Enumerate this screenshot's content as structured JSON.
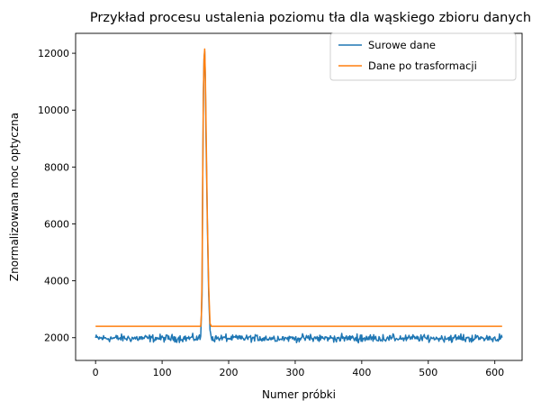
{
  "chart_data": {
    "type": "line",
    "title": "Przykład procesu ustalenia poziomu tła dla wąskiego zbioru danych",
    "xlabel": "Numer próbki",
    "ylabel": "Znormalizowana moc optyczna",
    "xlim": [
      -30,
      641
    ],
    "ylim": [
      1200,
      12700
    ],
    "xticks": [
      0,
      100,
      200,
      300,
      400,
      500,
      600
    ],
    "yticks": [
      2000,
      4000,
      6000,
      8000,
      10000,
      12000
    ],
    "grid": false,
    "legend_position": "top-right",
    "series": [
      {
        "name": "Surowe dane",
        "color": "#1f77b4",
        "baseline": 1980,
        "noise_amplitude": 130,
        "n_points": 612,
        "peak": [
          [
            158,
            2050
          ],
          [
            160,
            3500
          ],
          [
            161,
            7500
          ],
          [
            162,
            10500
          ],
          [
            163,
            11800
          ],
          [
            164,
            12050
          ],
          [
            165,
            11000
          ],
          [
            166,
            9000
          ],
          [
            168,
            6000
          ],
          [
            170,
            3500
          ],
          [
            172,
            2300
          ],
          [
            174,
            2000
          ]
        ]
      },
      {
        "name": "Dane po trasformacji",
        "color": "#ff7f0e",
        "x": [
          0,
          158,
          159,
          160,
          161,
          162,
          163,
          164,
          165,
          166,
          168,
          170,
          172,
          174,
          611
        ],
        "y": [
          2400,
          2400,
          2800,
          4000,
          7500,
          10500,
          11800,
          12150,
          11200,
          9500,
          6200,
          3800,
          2500,
          2400,
          2400
        ]
      }
    ]
  }
}
